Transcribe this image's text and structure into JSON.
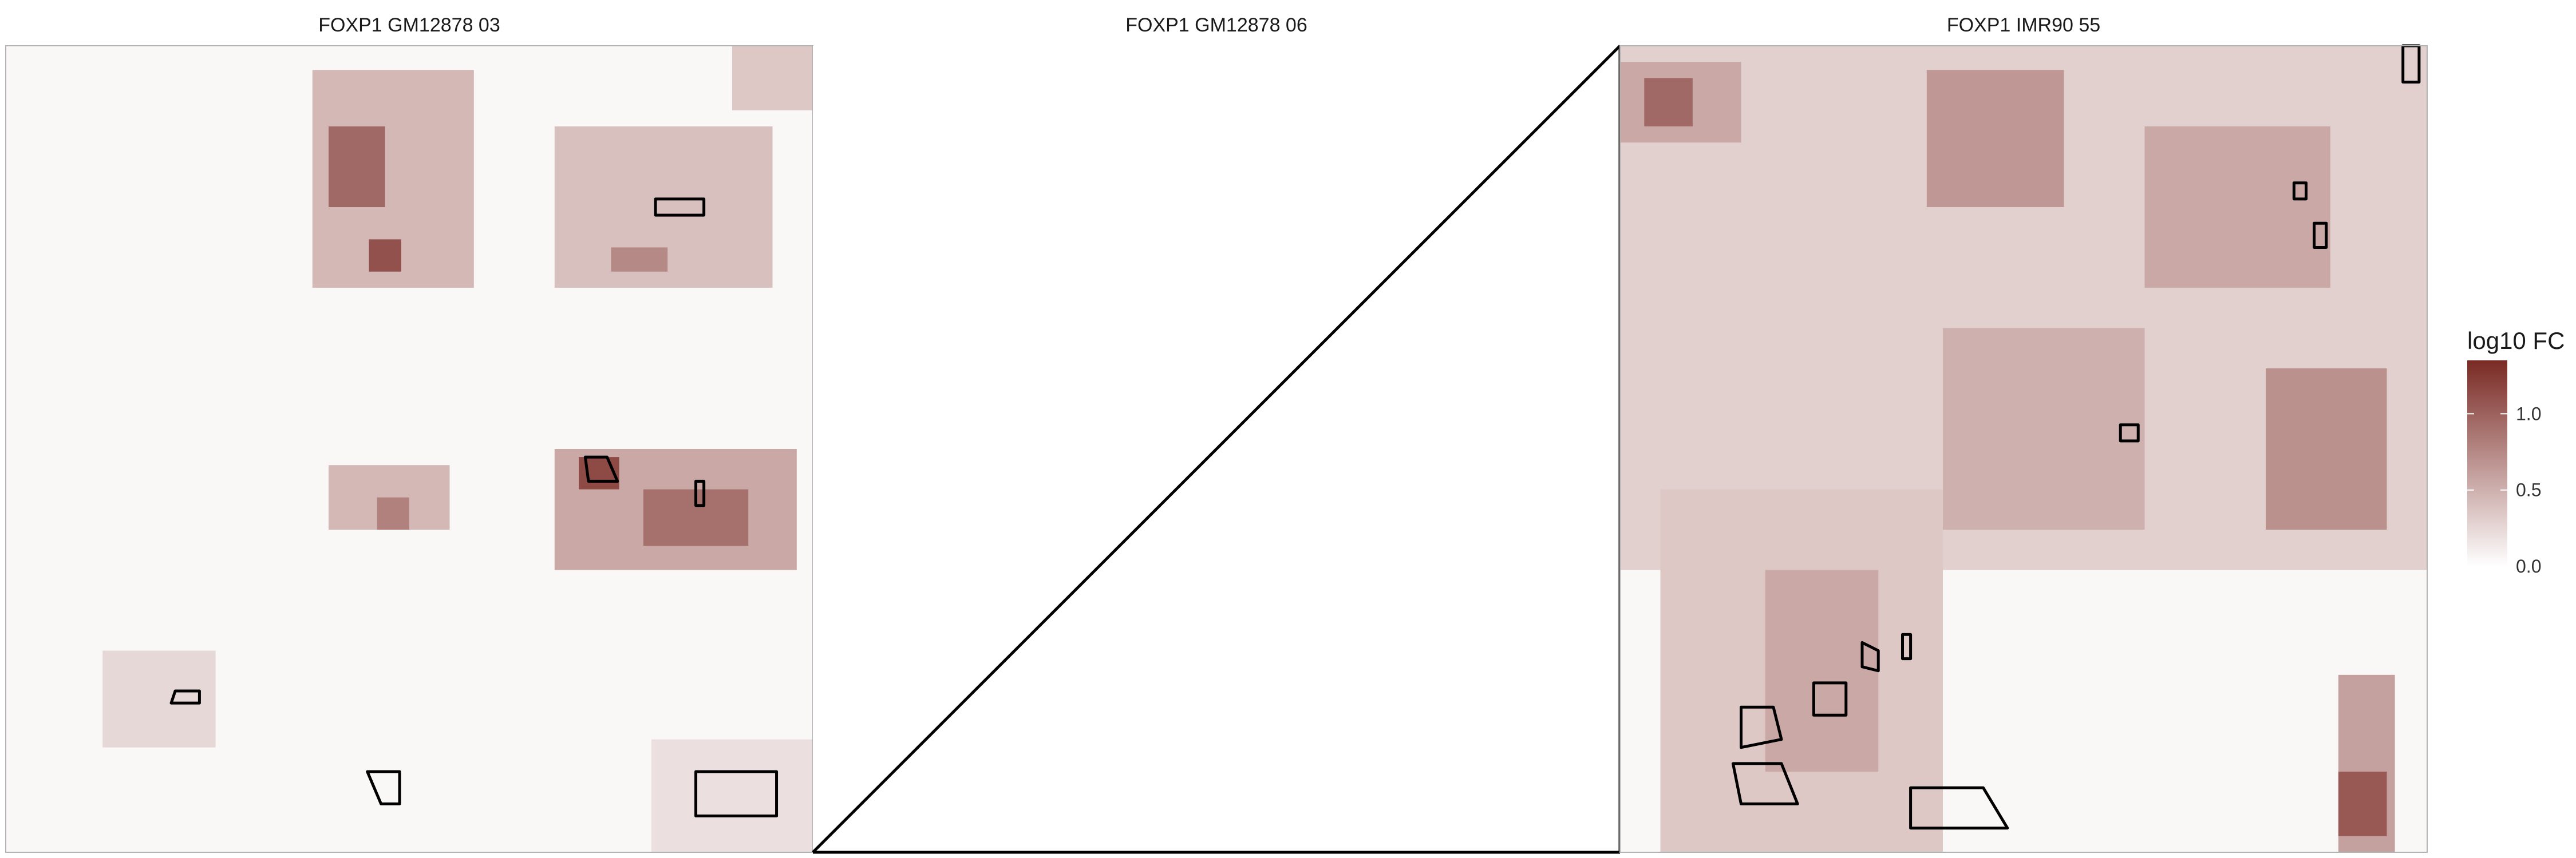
{
  "chart_data": {
    "type": "heatmap",
    "facets": [
      {
        "title": "FOXP1 GM12878 03",
        "has_data": true,
        "blocks": [
          {
            "x": [
              0.38,
              0.58
            ],
            "y": [
              0.03,
              0.3
            ],
            "v": 0.45
          },
          {
            "x": [
              0.4,
              0.47
            ],
            "y": [
              0.1,
              0.2
            ],
            "v": 0.95
          },
          {
            "x": [
              0.45,
              0.49
            ],
            "y": [
              0.24,
              0.28
            ],
            "v": 1.1
          },
          {
            "x": [
              0.68,
              0.95
            ],
            "y": [
              0.1,
              0.3
            ],
            "v": 0.4
          },
          {
            "x": [
              0.75,
              0.82
            ],
            "y": [
              0.25,
              0.28
            ],
            "v": 0.75
          },
          {
            "x": [
              0.9,
              1.0
            ],
            "y": [
              0.0,
              0.08
            ],
            "v": 0.35
          },
          {
            "x": [
              0.4,
              0.55
            ],
            "y": [
              0.52,
              0.6
            ],
            "v": 0.45
          },
          {
            "x": [
              0.46,
              0.5
            ],
            "y": [
              0.56,
              0.6
            ],
            "v": 0.8
          },
          {
            "x": [
              0.68,
              0.98
            ],
            "y": [
              0.5,
              0.65
            ],
            "v": 0.55
          },
          {
            "x": [
              0.79,
              0.92
            ],
            "y": [
              0.55,
              0.62
            ],
            "v": 0.9
          },
          {
            "x": [
              0.71,
              0.76
            ],
            "y": [
              0.51,
              0.55
            ],
            "v": 1.15
          },
          {
            "x": [
              0.12,
              0.26
            ],
            "y": [
              0.75,
              0.87
            ],
            "v": 0.25
          },
          {
            "x": [
              0.8,
              1.0
            ],
            "y": [
              0.86,
              1.0
            ],
            "v": 0.2
          }
        ],
        "outlines": [
          [
            [
              0.805,
              0.19
            ],
            [
              0.865,
              0.19
            ],
            [
              0.865,
              0.21
            ],
            [
              0.805,
              0.21
            ]
          ],
          [
            [
              0.718,
              0.51
            ],
            [
              0.745,
              0.51
            ],
            [
              0.758,
              0.54
            ],
            [
              0.722,
              0.54
            ]
          ],
          [
            [
              0.855,
              0.54
            ],
            [
              0.865,
              0.54
            ],
            [
              0.865,
              0.57
            ],
            [
              0.855,
              0.57
            ]
          ],
          [
            [
              0.448,
              0.9
            ],
            [
              0.488,
              0.9
            ],
            [
              0.488,
              0.94
            ],
            [
              0.465,
              0.94
            ]
          ],
          [
            [
              0.855,
              0.9
            ],
            [
              0.955,
              0.9
            ],
            [
              0.955,
              0.955
            ],
            [
              0.855,
              0.955
            ]
          ],
          [
            [
              0.21,
              0.8
            ],
            [
              0.24,
              0.8
            ],
            [
              0.24,
              0.815
            ],
            [
              0.205,
              0.815
            ]
          ]
        ]
      },
      {
        "title": "FOXP1 GM12878 06",
        "has_data": false,
        "blocks": [],
        "outlines": []
      },
      {
        "title": "FOXP1 IMR90 55",
        "has_data": true,
        "blocks": [
          {
            "x": [
              0.0,
              1.0
            ],
            "y": [
              0.0,
              0.65
            ],
            "v": 0.3
          },
          {
            "x": [
              0.0,
              0.15
            ],
            "y": [
              0.02,
              0.12
            ],
            "v": 0.55
          },
          {
            "x": [
              0.03,
              0.09
            ],
            "y": [
              0.04,
              0.1
            ],
            "v": 0.95
          },
          {
            "x": [
              0.38,
              0.55
            ],
            "y": [
              0.03,
              0.2
            ],
            "v": 0.65
          },
          {
            "x": [
              0.65,
              0.88
            ],
            "y": [
              0.1,
              0.3
            ],
            "v": 0.55
          },
          {
            "x": [
              0.4,
              0.65
            ],
            "y": [
              0.35,
              0.6
            ],
            "v": 0.5
          },
          {
            "x": [
              0.8,
              0.95
            ],
            "y": [
              0.4,
              0.6
            ],
            "v": 0.7
          },
          {
            "x": [
              0.05,
              0.4
            ],
            "y": [
              0.55,
              1.0
            ],
            "v": 0.35
          },
          {
            "x": [
              0.18,
              0.32
            ],
            "y": [
              0.65,
              0.9
            ],
            "v": 0.55
          },
          {
            "x": [
              0.89,
              0.96
            ],
            "y": [
              0.78,
              1.0
            ],
            "v": 0.6
          },
          {
            "x": [
              0.89,
              0.95
            ],
            "y": [
              0.9,
              0.98
            ],
            "v": 1.05
          }
        ],
        "outlines": [
          [
            [
              0.97,
              0.0
            ],
            [
              0.99,
              0.0
            ],
            [
              0.99,
              0.045
            ],
            [
              0.97,
              0.045
            ]
          ],
          [
            [
              0.835,
              0.17
            ],
            [
              0.85,
              0.17
            ],
            [
              0.85,
              0.19
            ],
            [
              0.835,
              0.19
            ]
          ],
          [
            [
              0.86,
              0.22
            ],
            [
              0.875,
              0.22
            ],
            [
              0.875,
              0.25
            ],
            [
              0.86,
              0.25
            ]
          ],
          [
            [
              0.62,
              0.47
            ],
            [
              0.642,
              0.47
            ],
            [
              0.642,
              0.49
            ],
            [
              0.62,
              0.49
            ]
          ],
          [
            [
              0.35,
              0.73
            ],
            [
              0.36,
              0.73
            ],
            [
              0.36,
              0.76
            ],
            [
              0.35,
              0.76
            ]
          ],
          [
            [
              0.3,
              0.74
            ],
            [
              0.32,
              0.75
            ],
            [
              0.32,
              0.775
            ],
            [
              0.3,
              0.77
            ]
          ],
          [
            [
              0.24,
              0.79
            ],
            [
              0.28,
              0.79
            ],
            [
              0.28,
              0.83
            ],
            [
              0.24,
              0.83
            ]
          ],
          [
            [
              0.15,
              0.82
            ],
            [
              0.19,
              0.82
            ],
            [
              0.2,
              0.86
            ],
            [
              0.15,
              0.87
            ]
          ],
          [
            [
              0.14,
              0.89
            ],
            [
              0.2,
              0.89
            ],
            [
              0.22,
              0.94
            ],
            [
              0.15,
              0.94
            ]
          ],
          [
            [
              0.36,
              0.92
            ],
            [
              0.45,
              0.92
            ],
            [
              0.48,
              0.97
            ],
            [
              0.36,
              0.97
            ]
          ]
        ]
      }
    ],
    "legend": {
      "title": "log10 FC",
      "ticks": [
        0.0,
        0.5,
        1.0
      ],
      "tick_labels": [
        "0.0",
        "0.5",
        "1.0"
      ],
      "range": [
        0.0,
        1.35
      ],
      "low_color": "#ffffff",
      "high_color": "#7a2a24",
      "placement": "right"
    },
    "background_value": 0.05,
    "grid": false
  }
}
